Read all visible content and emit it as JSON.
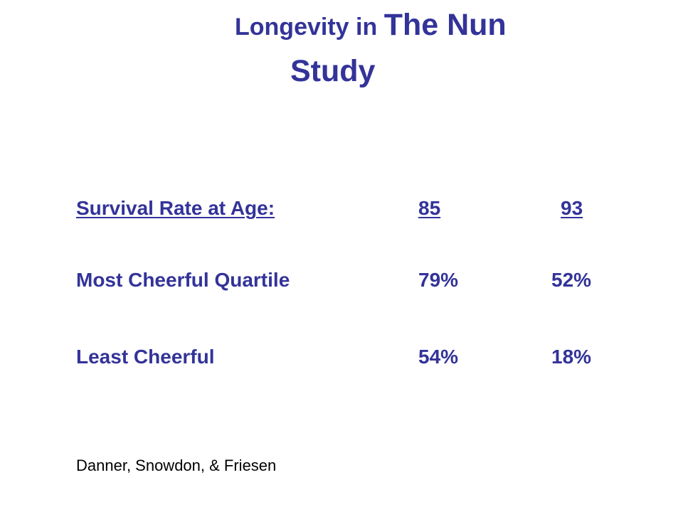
{
  "slide": {
    "title": {
      "part1": "Longevity in ",
      "part2": "The Nun",
      "line2": "Study"
    },
    "table": {
      "header": [
        "Survival Rate at Age:",
        "85",
        "93"
      ],
      "rows": [
        [
          "Most Cheerful Quartile",
          "79%",
          "52%"
        ],
        [
          "Least Cheerful",
          "54%",
          "18%"
        ]
      ]
    },
    "citation": "Danner, Snowdon, & Friesen"
  },
  "colors": {
    "text_accent": "#333399",
    "citation_text": "#000000",
    "background": "#ffffff"
  }
}
